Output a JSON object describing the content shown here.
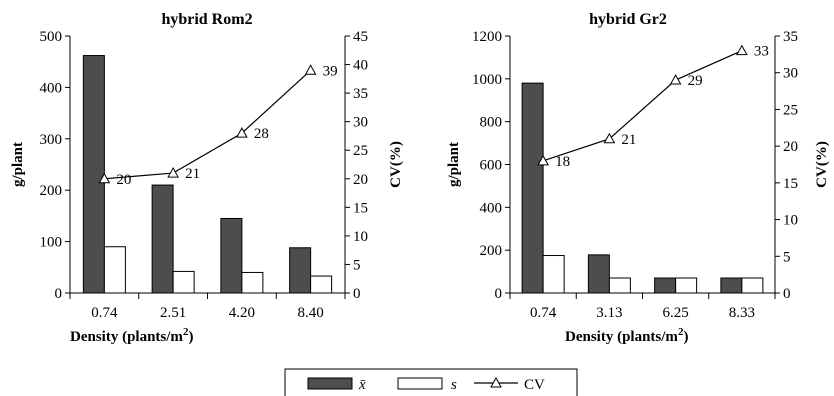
{
  "chart_data": [
    {
      "type": "bar",
      "title": "hybrid Rom2",
      "xlabel": "Density (plants/m²)",
      "xlabel_main": "Density (plants/m",
      "xlabel_sup": "2",
      "xlabel_close": ")",
      "ylabel": "g/plant",
      "y2label": "CV(%)",
      "categories": [
        "0.74",
        "2.51",
        "4.20",
        "8.40"
      ],
      "ylim": [
        0,
        500
      ],
      "yticks": [
        "0",
        "100",
        "200",
        "300",
        "400",
        "500"
      ],
      "y2lim": [
        0,
        45
      ],
      "y2ticks": [
        "0",
        "5",
        "10",
        "15",
        "20",
        "25",
        "30",
        "35",
        "40",
        "45"
      ],
      "series": [
        {
          "name": "x̄",
          "type": "bar",
          "color": "#4d4d4d",
          "values": [
            462,
            210,
            145,
            88
          ]
        },
        {
          "name": "s",
          "type": "bar",
          "color": "#ffffff",
          "values": [
            90,
            42,
            40,
            33
          ]
        },
        {
          "name": "CV",
          "type": "line",
          "axis": "right",
          "values": [
            20,
            21,
            28,
            39
          ],
          "labels": [
            "20",
            "21",
            "28",
            "39"
          ]
        }
      ]
    },
    {
      "type": "bar",
      "title": "hybrid Gr2",
      "xlabel": "Density (plants/m²)",
      "xlabel_main": "Density (plants/m",
      "xlabel_sup": "2",
      "xlabel_close": ")",
      "ylabel": "g/plant",
      "y2label": "CV(%)",
      "categories": [
        "0.74",
        "3.13",
        "6.25",
        "8.33"
      ],
      "ylim": [
        0,
        1200
      ],
      "yticks": [
        "0",
        "200",
        "400",
        "600",
        "800",
        "1000",
        "1200"
      ],
      "y2lim": [
        0,
        35
      ],
      "y2ticks": [
        "0",
        "5",
        "10",
        "15",
        "20",
        "25",
        "30",
        "35"
      ],
      "series": [
        {
          "name": "x̄",
          "type": "bar",
          "color": "#4d4d4d",
          "values": [
            980,
            178,
            70,
            70
          ]
        },
        {
          "name": "s",
          "type": "bar",
          "color": "#ffffff",
          "values": [
            175,
            70,
            70,
            70
          ]
        },
        {
          "name": "CV",
          "type": "line",
          "axis": "right",
          "values": [
            18,
            21,
            29,
            33
          ],
          "labels": [
            "18",
            "21",
            "29",
            "33"
          ]
        }
      ]
    }
  ],
  "legend": {
    "placement": "bottom-center",
    "items": [
      {
        "label": "x̄",
        "kind": "bar-dark"
      },
      {
        "label": "s",
        "kind": "bar-white"
      },
      {
        "label": "CV",
        "kind": "line-triangle"
      }
    ]
  }
}
